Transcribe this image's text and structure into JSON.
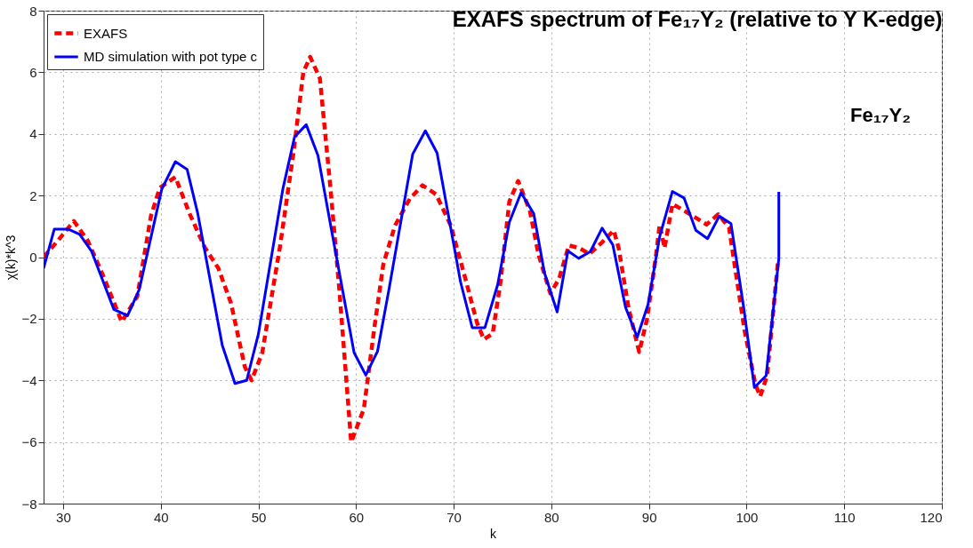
{
  "chart_data": {
    "type": "line",
    "title": "EXAFS spectrum of Fe₁₇Y₂  (relative to Y K-edge)",
    "xlabel": "k",
    "ylabel": "χ(k)*k^3",
    "xlim": [
      28,
      120
    ],
    "xticks": [
      30,
      40,
      50,
      60,
      70,
      80,
      90,
      100,
      110,
      120
    ],
    "ylim": [
      -8,
      8
    ],
    "yticks": [
      -8,
      -6,
      -4,
      -2,
      0,
      2,
      4,
      6,
      8
    ],
    "grid": true,
    "legend": "top left",
    "marker": "none",
    "annotations": [
      "Fe₁₇Y₂"
    ],
    "series": [
      {
        "name": "EXAFS",
        "color": "#ff0000",
        "line_style": "dashed",
        "x": [
          28.0,
          29.5,
          31.1,
          32.5,
          34.1,
          36.0,
          37.6,
          39.0,
          39.9,
          41.5,
          42.9,
          44.5,
          45.9,
          47.2,
          48.6,
          49.3,
          50.4,
          52.2,
          53.6,
          54.6,
          55.3,
          56.3,
          57.4,
          58.3,
          59.5,
          60.8,
          61.9,
          62.8,
          64.0,
          65.5,
          66.8,
          68.2,
          69.7,
          71.2,
          72.4,
          73.1,
          74.0,
          74.8,
          75.7,
          76.6,
          77.8,
          78.7,
          79.9,
          80.8,
          81.8,
          82.9,
          83.9,
          85.2,
          86.4,
          86.9,
          87.9,
          89.0,
          89.8,
          90.7,
          91.1,
          91.6,
          92.4,
          93.7,
          95.9,
          97.1,
          98.2,
          99.8,
          100.9,
          101.4,
          102.1,
          103.2
        ],
        "values": [
          0,
          0.55,
          1.17,
          0.55,
          -0.6,
          -2.1,
          -1.27,
          1.34,
          2.25,
          2.6,
          1.45,
          0.32,
          -0.36,
          -1.5,
          -3.55,
          -4.0,
          -3.1,
          0.32,
          3.4,
          6.0,
          6.5,
          5.8,
          2.18,
          -1.09,
          -6.0,
          -4.93,
          -2.24,
          -0.22,
          1.03,
          1.89,
          2.33,
          2.04,
          1.03,
          -0.7,
          -2.14,
          -2.67,
          -2.48,
          -0.8,
          1.8,
          2.47,
          1.51,
          0.07,
          -1.18,
          -0.7,
          0.38,
          0.29,
          0.1,
          0.48,
          0.87,
          0.29,
          -1.63,
          -3.08,
          -2.02,
          0,
          1.06,
          0.29,
          1.73,
          1.49,
          1.06,
          1.39,
          0.96,
          -2.4,
          -4.13,
          -4.52,
          -3.85,
          -0.19
        ]
      },
      {
        "name": "MD simulation with pot type c",
        "color": "#0000ff",
        "line_style": "solid",
        "x": [
          28.0,
          29.1,
          30.5,
          31.7,
          32.9,
          35.2,
          36.6,
          37.8,
          40.1,
          41.5,
          42.7,
          43.8,
          46.3,
          47.6,
          48.8,
          50.0,
          52.5,
          53.7,
          54.9,
          56.1,
          57.4,
          59.8,
          61.0,
          62.2,
          63.4,
          65.8,
          67.1,
          68.3,
          70.7,
          71.9,
          73.2,
          74.5,
          75.7,
          76.9,
          78.2,
          79.3,
          80.6,
          81.7,
          82.8,
          84.0,
          85.2,
          86.3,
          87.6,
          88.8,
          89.9,
          91.1,
          92.4,
          93.6,
          94.8,
          96.0,
          97.2,
          98.4,
          99.7,
          100.8,
          102.0,
          103.3,
          103.3
        ],
        "values": [
          -0.36,
          0.91,
          0.91,
          0.74,
          0.2,
          -1.7,
          -1.9,
          -1.05,
          2.2,
          3.1,
          2.85,
          1.4,
          -2.86,
          -4.1,
          -4.0,
          -2.5,
          2.2,
          3.9,
          4.3,
          3.3,
          1.03,
          -3.1,
          -3.83,
          -3.06,
          -1.0,
          3.34,
          4.1,
          3.38,
          -0.8,
          -2.29,
          -2.29,
          -0.9,
          1.13,
          2.09,
          1.41,
          -0.51,
          -1.78,
          0.2,
          -0.04,
          0.18,
          0.94,
          0.4,
          -1.63,
          -2.6,
          -1.54,
          0.67,
          2.13,
          1.92,
          0.87,
          0.6,
          1.33,
          1.09,
          -1.63,
          -4.23,
          -3.85,
          -0.05,
          2.12
        ]
      }
    ]
  }
}
